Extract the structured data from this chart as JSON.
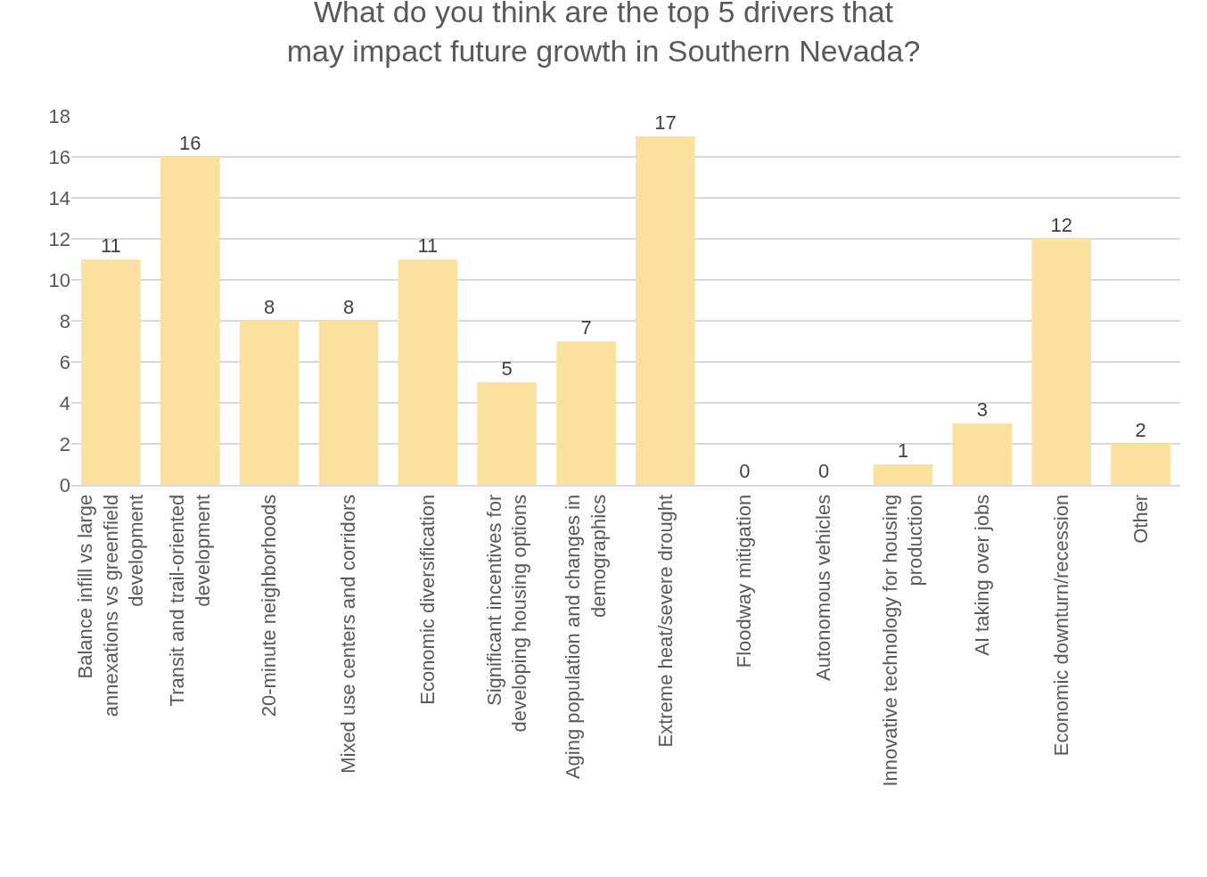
{
  "chart_data": {
    "type": "bar",
    "title": "What do you think are the top 5 drivers that may impact future growth in Southern Nevada?",
    "categories": [
      "Balance infill vs large annexations vs greenfield development",
      "Transit and trail-oriented development",
      "20-minute neighborhoods",
      "Mixed use centers and corridors",
      "Economic diversification",
      "Significant incentives for developing housing options",
      "Aging population and changes in demographics",
      "Extreme heat/severe drought",
      "Floodway mitigation",
      "Autonomous vehicles",
      "Innovative technology for housing production",
      "AI taking over jobs",
      "Economic downturn/recession",
      "Other"
    ],
    "values": [
      11,
      16,
      8,
      8,
      11,
      5,
      7,
      17,
      0,
      0,
      1,
      3,
      12,
      2
    ],
    "color": "#fbe0a0",
    "ylim": [
      0,
      18
    ],
    "yticks": [
      0,
      2,
      4,
      6,
      8,
      10,
      12,
      14,
      16,
      18
    ],
    "grid": "y",
    "data_labels": true,
    "legend": false
  }
}
